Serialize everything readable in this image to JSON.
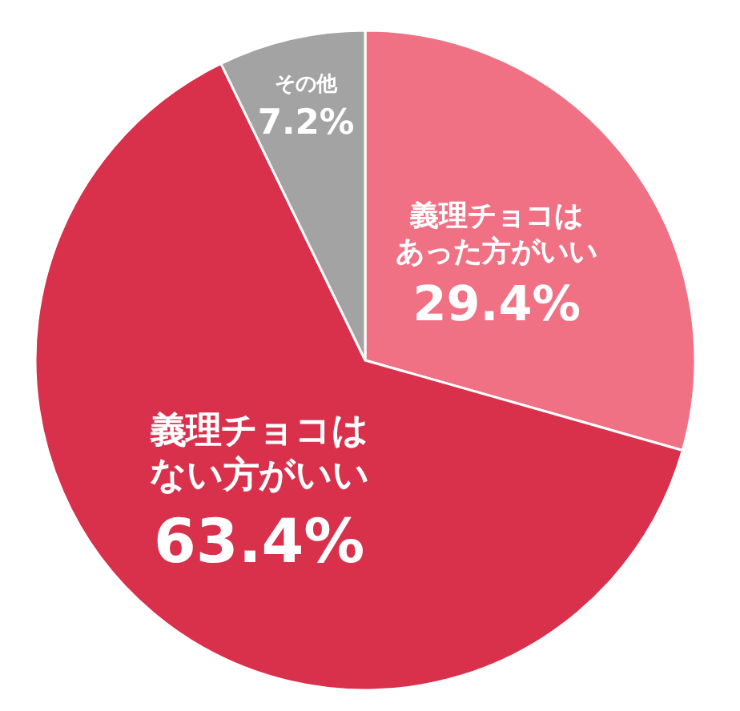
{
  "chart_data": {
    "type": "pie",
    "categories": [
      "義理チョコはあった方がいい",
      "義理チョコはない方がいい",
      "その他"
    ],
    "values": [
      29.4,
      63.4,
      7.2
    ],
    "value_labels": [
      "29.4%",
      "63.4%",
      "7.2%"
    ],
    "colors": [
      "#f07084",
      "#d9304c",
      "#a3a3a3"
    ]
  }
}
